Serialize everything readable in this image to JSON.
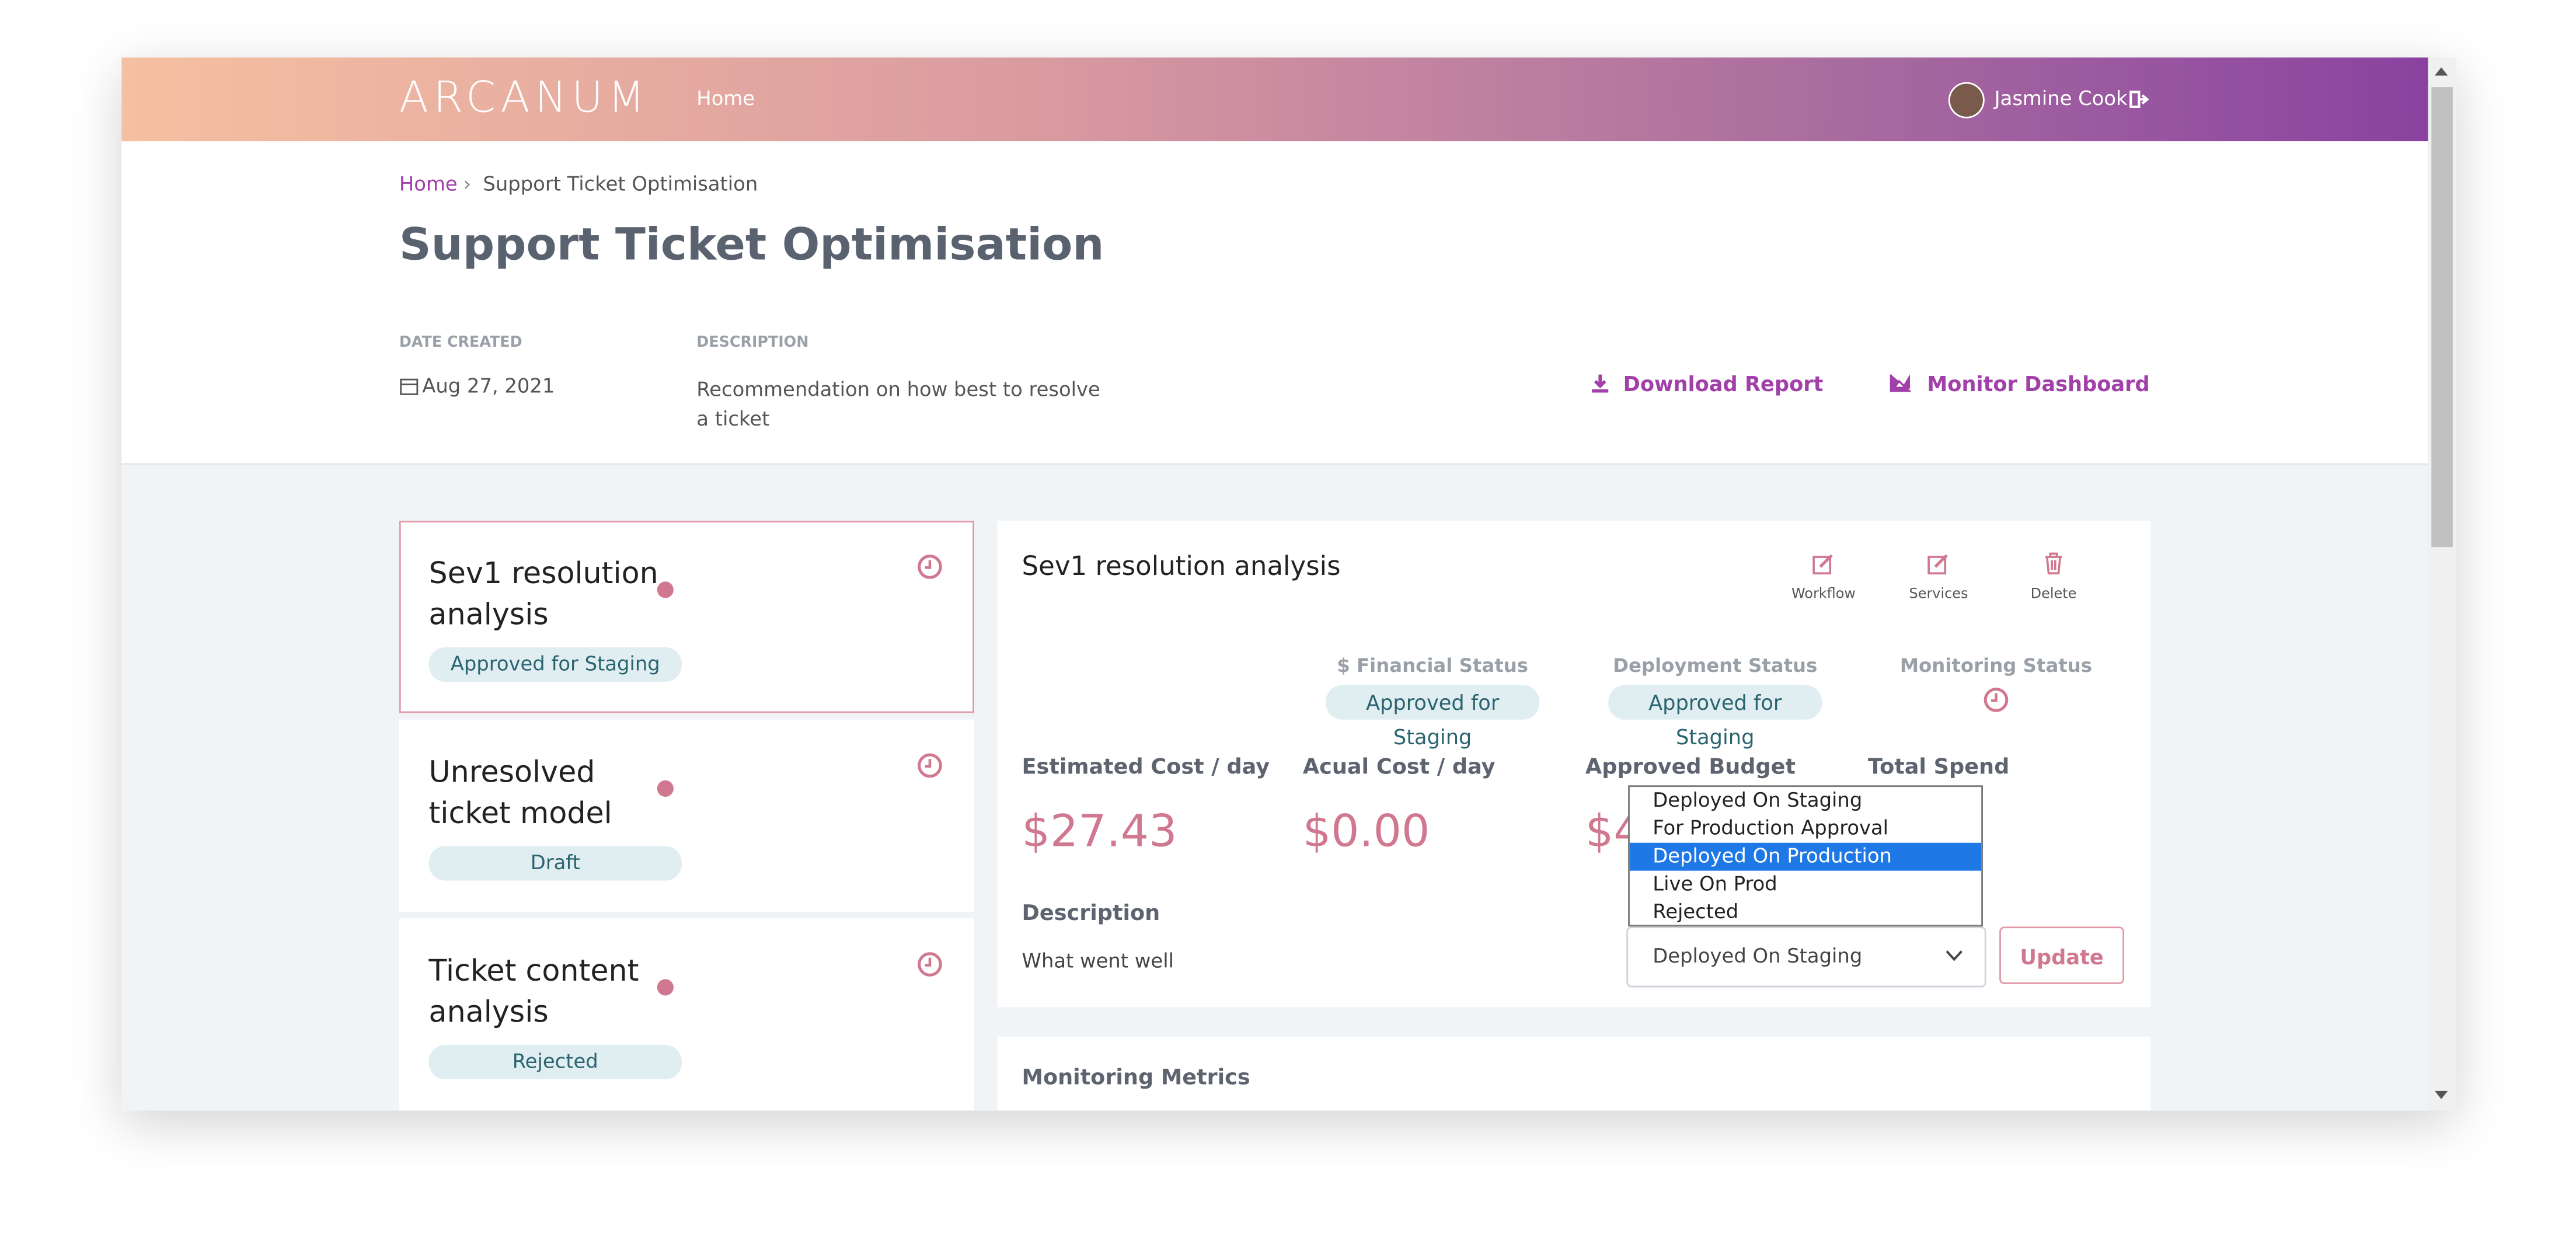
{
  "nav": {
    "brand": "ARCANUM",
    "link": "Home",
    "user": "Jasmine Cook"
  },
  "breadcrumb": [
    "Home",
    "Support Ticket Optimisation"
  ],
  "title": "Support Ticket Optimisation",
  "meta": {
    "date_label": "DATE CREATED",
    "date": "Aug 27, 2021",
    "description_label": "DESCRIPTION",
    "description": "Recommendation on how best to resolve a ticket"
  },
  "actions": [
    "Download Report",
    "Monitor Dashboard"
  ],
  "models": [
    {
      "name": "Sev1 resolution analysis",
      "status": "Approved for Staging"
    },
    {
      "name": "Unresolved ticket model",
      "status": "Draft"
    },
    {
      "name": "Ticket content analysis",
      "status": "Rejected"
    }
  ],
  "detail": {
    "title": "Sev1 resolution analysis",
    "tools": [
      "Workflow",
      "Services",
      "Delete"
    ],
    "statuses": [
      {
        "label": "$ Financial Status",
        "value": "Approved for Staging"
      },
      {
        "label": "Deployment Status",
        "value": "Approved for Staging"
      },
      {
        "label": "Monitoring Status"
      }
    ],
    "metrics": [
      {
        "label": "Estimated Cost / day",
        "value": "$27.43"
      },
      {
        "label": "Acual Cost / day",
        "value": "$0.00"
      },
      {
        "label": "Approved Budget",
        "value": "$4"
      },
      {
        "label": "Total Spend"
      }
    ],
    "description_label": "Description",
    "description": "What went well",
    "dropdown": {
      "options": [
        "Deployed On Staging",
        "For Production Approval",
        "Deployed On Production",
        "Live On Prod",
        "Rejected"
      ],
      "selected": "Deployed On Staging"
    },
    "button": "Update"
  },
  "monitoring_title": "Monitoring Metrics"
}
